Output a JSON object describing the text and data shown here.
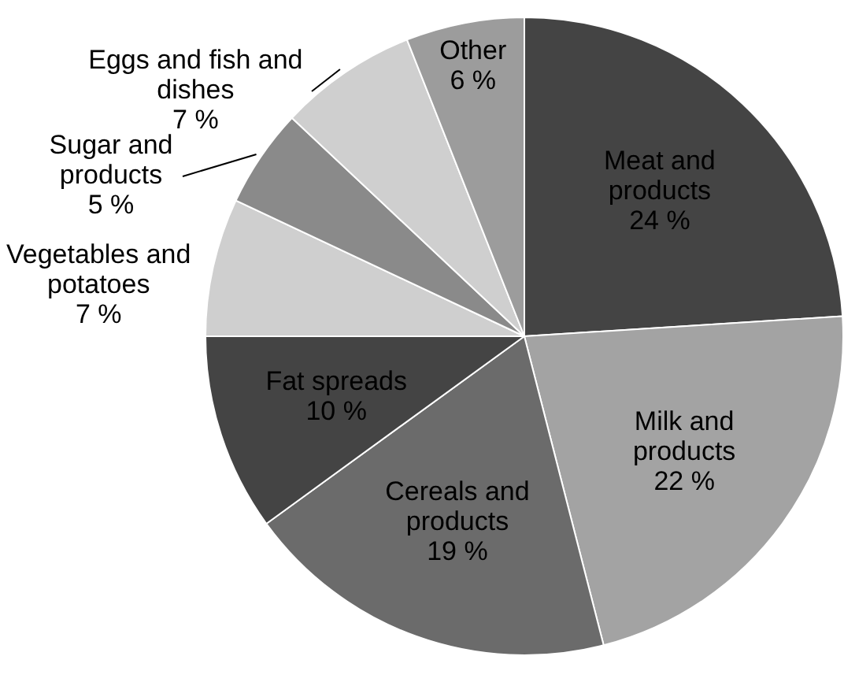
{
  "chart_data": {
    "type": "pie",
    "categories": [
      "Meat and\nproducts",
      "Milk and\nproducts",
      "Cereals and\nproducts",
      "Fat spreads",
      "Vegetables and\npotatoes",
      "Sugar and\nproducts",
      "Eggs and fish and\ndishes",
      "Other"
    ],
    "values": [
      24,
      22,
      19,
      10,
      7,
      5,
      7,
      6
    ],
    "value_labels": [
      "24 %",
      "22 %",
      "19 %",
      "10 %",
      "7 %",
      "5 %",
      "7 %",
      "6 %"
    ],
    "colors": [
      "#444444",
      "#a3a3a3",
      "#6b6b6b",
      "#444444",
      "#cfcfcf",
      "#8a8a8a",
      "#cfcfcf",
      "#9c9c9c"
    ],
    "legend": false
  }
}
